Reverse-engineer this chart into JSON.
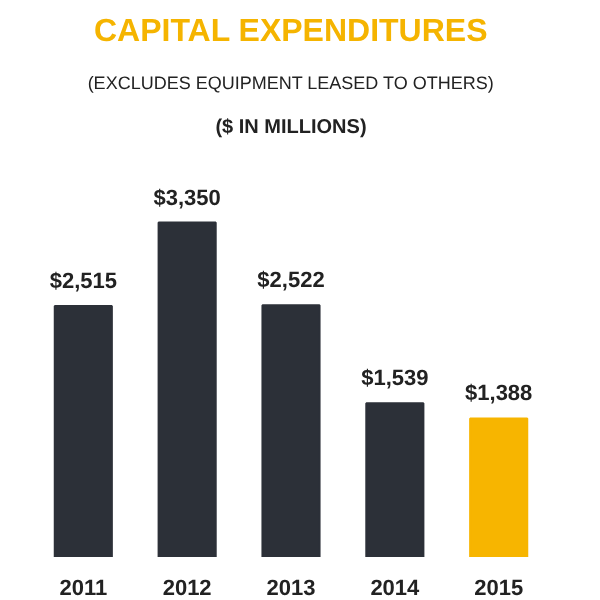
{
  "chart_data": {
    "type": "bar",
    "title": "CAPITAL EXPENDITURES",
    "subtitle": "(EXCLUDES EQUIPMENT LEASED TO OTHERS)",
    "annotations": [
      "($ IN MILLIONS)"
    ],
    "categories": [
      "2011",
      "2012",
      "2013",
      "2014",
      "2015"
    ],
    "values": [
      2515,
      3350,
      2522,
      1539,
      1388
    ],
    "colors": [
      "#2c3038",
      "#2c3038",
      "#2c3038",
      "#2c3038",
      "#f7b500"
    ],
    "value_labels": [
      "$2,515",
      "$3,350",
      "$2,522",
      "$1,539",
      "$1,388"
    ]
  }
}
